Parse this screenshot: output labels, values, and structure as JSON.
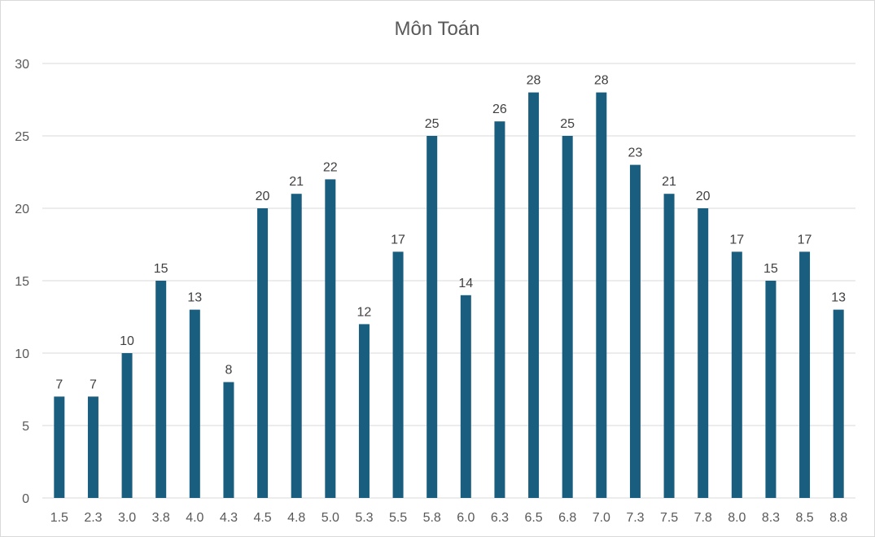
{
  "chart_data": {
    "type": "bar",
    "title": "Môn Toán",
    "xlabel": "",
    "ylabel": "",
    "ylim": [
      0,
      30
    ],
    "yticks": [
      0,
      5,
      10,
      15,
      20,
      25,
      30
    ],
    "grid": true,
    "legend": "none",
    "bar_color": "#1a5e7f",
    "categories": [
      "1.5",
      "2.3",
      "3.0",
      "3.8",
      "4.0",
      "4.3",
      "4.5",
      "4.8",
      "5.0",
      "5.3",
      "5.5",
      "5.8",
      "6.0",
      "6.3",
      "6.5",
      "6.8",
      "7.0",
      "7.3",
      "7.5",
      "7.8",
      "8.0",
      "8.3",
      "8.5",
      "8.8"
    ],
    "values": [
      7,
      7,
      10,
      15,
      13,
      8,
      20,
      21,
      22,
      12,
      17,
      25,
      14,
      26,
      28,
      25,
      28,
      23,
      21,
      20,
      17,
      15,
      17,
      13
    ]
  }
}
